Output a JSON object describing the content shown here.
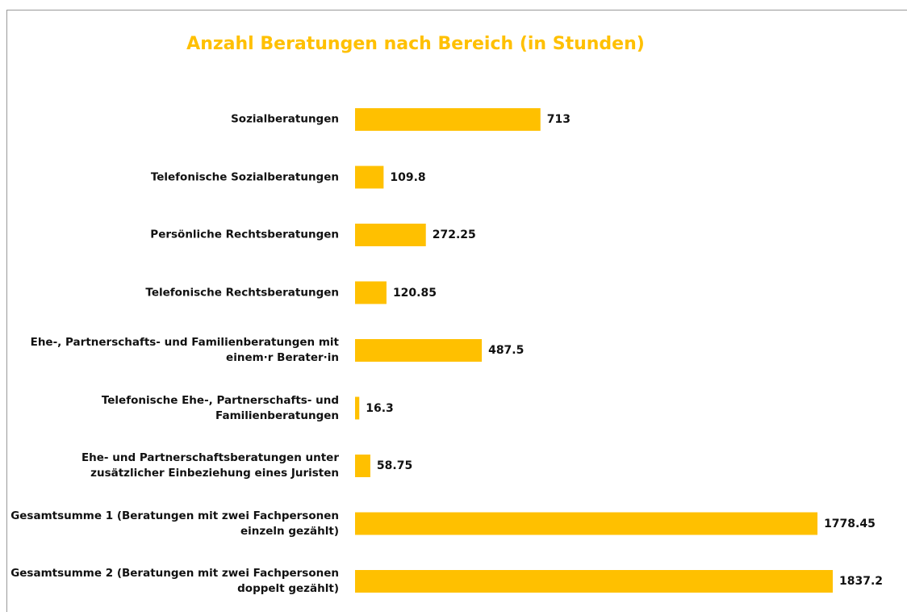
{
  "chart_data": {
    "type": "barh",
    "title": "Anzahl Beratungen nach Bereich (in Stunden)",
    "categories": [
      "Sozialberatungen",
      "Telefonische Sozialberatungen",
      "Persönliche Rechtsberatungen",
      "Telefonische Rechtsberatungen",
      "Ehe-, Partnerschafts- und Familienberatungen mit einem·r Berater·in",
      "Telefonische Ehe-, Partnerschafts- und Familienberatungen",
      "Ehe- und Partnerschaftsberatungen unter zusätzlicher Einbeziehung eines Juristen",
      "Gesamtsumme 1 (Beratungen mit zwei Fachpersonen einzeln gezählt)",
      "Gesamtsumme 2 (Beratungen mit zwei Fachpersonen doppelt gezählt)"
    ],
    "values": [
      713,
      109.8,
      272.25,
      120.85,
      487.5,
      16.3,
      58.75,
      1778.45,
      1837.2
    ],
    "color": "#ffc000"
  }
}
